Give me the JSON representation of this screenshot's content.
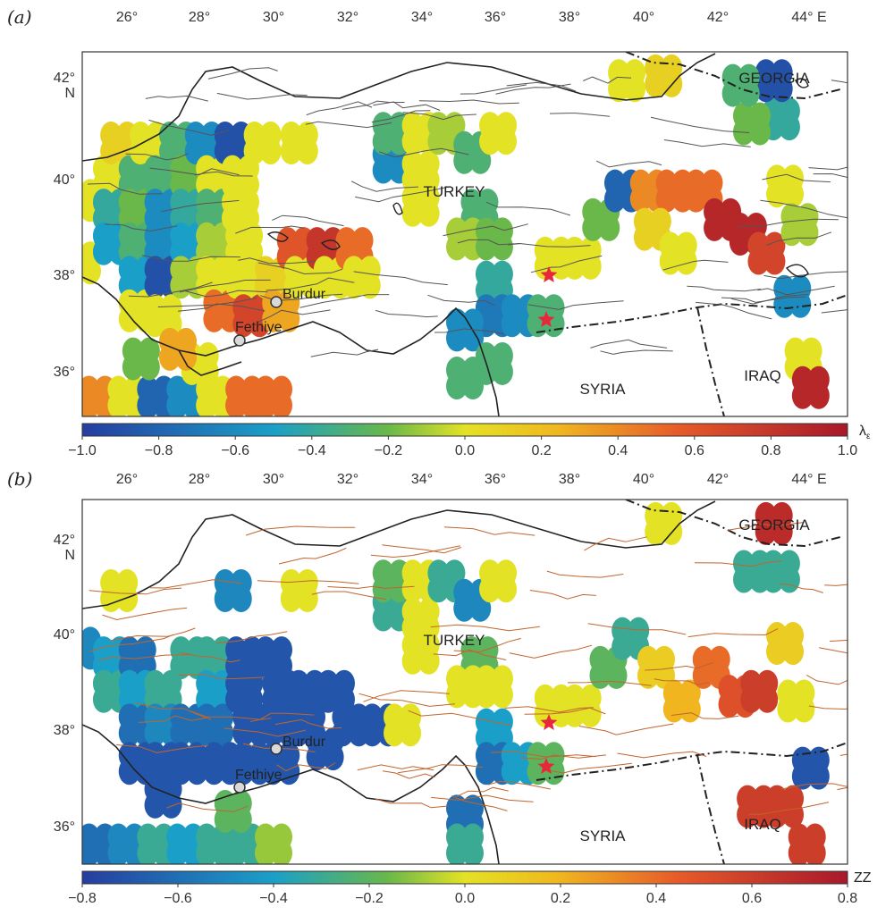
{
  "panels": [
    {
      "label": "(a)",
      "lon_ticks": [
        "26°",
        "28°",
        "30°",
        "32°",
        "34°",
        "36°",
        "38°",
        "40°",
        "42°",
        "44° E"
      ],
      "lat_ticks": [
        "42°",
        "40°",
        "38°",
        "36°"
      ],
      "lat_suffix": "N",
      "colorbar": {
        "title": "λε",
        "ticks": [
          "−1.0",
          "−0.8",
          "−0.6",
          "−0.4",
          "−0.2",
          "0.0",
          "0.2",
          "0.4",
          "0.6",
          "0.8",
          "1.0"
        ],
        "min": -1.0,
        "max": 1.0
      },
      "fault_color": "#555555",
      "cells": [
        {
          "lon": 25.0,
          "lat": 39.7,
          "v": 0.0
        },
        {
          "lon": 25.0,
          "lat": 38.4,
          "v": 0.0
        },
        {
          "lon": 25.8,
          "lat": 40.2,
          "v": 0.0
        },
        {
          "lon": 25.8,
          "lat": 39.5,
          "v": -0.4
        },
        {
          "lon": 25.8,
          "lat": 38.8,
          "v": -0.5
        },
        {
          "lon": 26.0,
          "lat": 40.9,
          "v": 0.1
        },
        {
          "lon": 26.5,
          "lat": 40.2,
          "v": -0.3
        },
        {
          "lon": 26.5,
          "lat": 39.5,
          "v": -0.2
        },
        {
          "lon": 26.5,
          "lat": 38.8,
          "v": -0.3
        },
        {
          "lon": 26.5,
          "lat": 38.1,
          "v": -0.5
        },
        {
          "lon": 26.5,
          "lat": 37.4,
          "v": 0.0
        },
        {
          "lon": 26.8,
          "lat": 40.9,
          "v": 0.0
        },
        {
          "lon": 27.2,
          "lat": 40.2,
          "v": -0.3
        },
        {
          "lon": 27.2,
          "lat": 39.5,
          "v": -0.6
        },
        {
          "lon": 27.2,
          "lat": 38.8,
          "v": -0.6
        },
        {
          "lon": 27.2,
          "lat": 38.1,
          "v": -0.9
        },
        {
          "lon": 27.2,
          "lat": 37.3,
          "v": 0.0
        },
        {
          "lon": 27.6,
          "lat": 40.9,
          "v": -0.3
        },
        {
          "lon": 27.9,
          "lat": 40.2,
          "v": -0.2
        },
        {
          "lon": 27.9,
          "lat": 39.5,
          "v": -0.4
        },
        {
          "lon": 27.9,
          "lat": 38.8,
          "v": -0.5
        },
        {
          "lon": 27.9,
          "lat": 38.1,
          "v": -0.1
        },
        {
          "lon": 28.3,
          "lat": 40.9,
          "v": -0.6
        },
        {
          "lon": 28.6,
          "lat": 40.2,
          "v": 0.0
        },
        {
          "lon": 28.6,
          "lat": 39.5,
          "v": -0.3
        },
        {
          "lon": 28.6,
          "lat": 38.8,
          "v": -0.1
        },
        {
          "lon": 28.6,
          "lat": 38.1,
          "v": 0.0
        },
        {
          "lon": 28.8,
          "lat": 37.4,
          "v": 0.5
        },
        {
          "lon": 29.1,
          "lat": 40.9,
          "v": -0.9
        },
        {
          "lon": 29.3,
          "lat": 40.2,
          "v": 0.0
        },
        {
          "lon": 29.3,
          "lat": 39.5,
          "v": 0.0
        },
        {
          "lon": 29.4,
          "lat": 38.8,
          "v": 0.0
        },
        {
          "lon": 29.4,
          "lat": 38.1,
          "v": 0.0
        },
        {
          "lon": 29.6,
          "lat": 37.3,
          "v": 0.7
        },
        {
          "lon": 29.9,
          "lat": 40.9,
          "v": 0.0
        },
        {
          "lon": 30.2,
          "lat": 38.1,
          "v": 0.1
        },
        {
          "lon": 30.4,
          "lat": 37.4,
          "v": 0.3
        },
        {
          "lon": 30.8,
          "lat": 38.7,
          "v": 0.6
        },
        {
          "lon": 30.9,
          "lat": 40.9,
          "v": 0.0
        },
        {
          "lon": 31.0,
          "lat": 38.1,
          "v": 0.0
        },
        {
          "lon": 31.6,
          "lat": 38.7,
          "v": 0.8
        },
        {
          "lon": 31.8,
          "lat": 38.1,
          "v": 0.0
        },
        {
          "lon": 32.4,
          "lat": 38.7,
          "v": 0.5
        },
        {
          "lon": 32.6,
          "lat": 38.1,
          "v": 0.0
        },
        {
          "lon": 33.4,
          "lat": 40.5,
          "v": -0.6
        },
        {
          "lon": 33.4,
          "lat": 41.1,
          "v": -0.3
        },
        {
          "lon": 34.2,
          "lat": 41.1,
          "v": 0.0
        },
        {
          "lon": 34.2,
          "lat": 40.3,
          "v": 0.0
        },
        {
          "lon": 34.2,
          "lat": 39.6,
          "v": 0.0
        },
        {
          "lon": 34.9,
          "lat": 41.1,
          "v": -0.1
        },
        {
          "lon": 35.6,
          "lat": 40.7,
          "v": -0.3
        },
        {
          "lon": 36.3,
          "lat": 41.1,
          "v": 0.0
        },
        {
          "lon": 35.8,
          "lat": 39.5,
          "v": -0.3
        },
        {
          "lon": 35.4,
          "lat": 38.9,
          "v": -0.1
        },
        {
          "lon": 36.2,
          "lat": 38.9,
          "v": -0.2
        },
        {
          "lon": 36.2,
          "lat": 38.0,
          "v": -0.4
        },
        {
          "lon": 36.2,
          "lat": 37.3,
          "v": -0.7
        },
        {
          "lon": 36.9,
          "lat": 37.3,
          "v": -0.6
        },
        {
          "lon": 35.4,
          "lat": 37.0,
          "v": -0.6
        },
        {
          "lon": 35.4,
          "lat": 36.0,
          "v": -0.3
        },
        {
          "lon": 36.2,
          "lat": 36.3,
          "v": -0.3
        },
        {
          "lon": 37.6,
          "lat": 37.3,
          "v": -0.3
        },
        {
          "lon": 37.8,
          "lat": 38.5,
          "v": 0.0
        },
        {
          "lon": 38.6,
          "lat": 38.5,
          "v": 0.0
        },
        {
          "lon": 39.1,
          "lat": 39.3,
          "v": -0.2
        },
        {
          "lon": 39.7,
          "lat": 39.9,
          "v": -0.8
        },
        {
          "lon": 40.4,
          "lat": 39.9,
          "v": 0.4
        },
        {
          "lon": 41.1,
          "lat": 39.9,
          "v": 0.5
        },
        {
          "lon": 41.9,
          "lat": 39.9,
          "v": 0.5
        },
        {
          "lon": 40.5,
          "lat": 39.1,
          "v": 0.1
        },
        {
          "lon": 41.2,
          "lat": 38.6,
          "v": 0.0
        },
        {
          "lon": 42.4,
          "lat": 39.3,
          "v": 0.9
        },
        {
          "lon": 43.1,
          "lat": 39.0,
          "v": 0.9
        },
        {
          "lon": 43.6,
          "lat": 38.6,
          "v": 0.7
        },
        {
          "lon": 44.1,
          "lat": 40.0,
          "v": 0.0
        },
        {
          "lon": 44.5,
          "lat": 39.2,
          "v": -0.1
        },
        {
          "lon": 44.3,
          "lat": 37.7,
          "v": -0.6
        },
        {
          "lon": 44.6,
          "lat": 36.4,
          "v": 0.0
        },
        {
          "lon": 44.8,
          "lat": 35.8,
          "v": 0.9
        },
        {
          "lon": 44.0,
          "lat": 41.4,
          "v": -0.4
        },
        {
          "lon": 43.2,
          "lat": 41.3,
          "v": -0.2
        },
        {
          "lon": 43.8,
          "lat": 42.2,
          "v": -0.9
        },
        {
          "lon": 42.9,
          "lat": 42.1,
          "v": -0.3
        },
        {
          "lon": 40.8,
          "lat": 42.3,
          "v": 0.1
        },
        {
          "lon": 39.8,
          "lat": 42.2,
          "v": 0.0
        },
        {
          "lon": 25.4,
          "lat": 35.6,
          "v": 0.4
        },
        {
          "lon": 26.2,
          "lat": 35.6,
          "v": 0.0
        },
        {
          "lon": 27.0,
          "lat": 35.6,
          "v": -0.8
        },
        {
          "lon": 27.8,
          "lat": 35.6,
          "v": -0.6
        },
        {
          "lon": 28.6,
          "lat": 35.6,
          "v": 0.0
        },
        {
          "lon": 29.4,
          "lat": 35.6,
          "v": 0.5
        },
        {
          "lon": 30.2,
          "lat": 35.6,
          "v": 0.5
        },
        {
          "lon": 26.6,
          "lat": 36.4,
          "v": -0.2
        },
        {
          "lon": 28.2,
          "lat": 36.3,
          "v": 0.0
        },
        {
          "lon": 27.6,
          "lat": 36.6,
          "v": 0.3
        }
      ],
      "labels": {
        "turkey": "TURKEY",
        "georgia": "GEORGIA",
        "syria": "SYRIA",
        "iraq": "IRAQ",
        "burdur": "Burdur",
        "fethiye": "Fethiye"
      }
    },
    {
      "label": "(b)",
      "lon_ticks": [
        "26°",
        "28°",
        "30°",
        "32°",
        "34°",
        "36°",
        "38°",
        "40°",
        "42°",
        "44° E"
      ],
      "lat_ticks": [
        "42°",
        "40°",
        "38°",
        "36°"
      ],
      "lat_suffix": "N",
      "colorbar": {
        "title": "ZZ",
        "ticks": [
          "−0.8",
          "−0.6",
          "−0.4",
          "−0.2",
          "0.0",
          "0.2",
          "0.4",
          "0.6",
          "0.8"
        ],
        "min": -0.8,
        "max": 0.8
      },
      "fault_color": "#c0652d",
      "cells": [
        {
          "lon": 25.0,
          "lat": 39.7,
          "v": -0.5
        },
        {
          "lon": 25.8,
          "lat": 39.5,
          "v": -0.4
        },
        {
          "lon": 25.8,
          "lat": 38.8,
          "v": -0.3
        },
        {
          "lon": 26.0,
          "lat": 40.9,
          "v": 0.0
        },
        {
          "lon": 26.5,
          "lat": 39.5,
          "v": -0.6
        },
        {
          "lon": 26.5,
          "lat": 38.8,
          "v": -0.4
        },
        {
          "lon": 26.5,
          "lat": 38.1,
          "v": -0.6
        },
        {
          "lon": 26.5,
          "lat": 37.3,
          "v": -0.7
        },
        {
          "lon": 27.2,
          "lat": 38.8,
          "v": -0.3
        },
        {
          "lon": 27.2,
          "lat": 38.1,
          "v": -0.5
        },
        {
          "lon": 27.2,
          "lat": 37.3,
          "v": -0.7
        },
        {
          "lon": 27.2,
          "lat": 36.6,
          "v": -0.7
        },
        {
          "lon": 27.9,
          "lat": 39.5,
          "v": -0.3
        },
        {
          "lon": 27.9,
          "lat": 38.1,
          "v": -0.6
        },
        {
          "lon": 27.9,
          "lat": 37.3,
          "v": -0.7
        },
        {
          "lon": 28.6,
          "lat": 39.5,
          "v": -0.3
        },
        {
          "lon": 28.6,
          "lat": 38.8,
          "v": -0.4
        },
        {
          "lon": 28.6,
          "lat": 38.1,
          "v": -0.6
        },
        {
          "lon": 28.8,
          "lat": 37.3,
          "v": -0.7
        },
        {
          "lon": 29.1,
          "lat": 40.9,
          "v": -0.5
        },
        {
          "lon": 29.4,
          "lat": 39.5,
          "v": -0.7
        },
        {
          "lon": 29.4,
          "lat": 38.8,
          "v": -0.7
        },
        {
          "lon": 29.6,
          "lat": 38.1,
          "v": -0.7
        },
        {
          "lon": 29.6,
          "lat": 37.3,
          "v": -0.7
        },
        {
          "lon": 30.2,
          "lat": 39.5,
          "v": -0.7
        },
        {
          "lon": 30.4,
          "lat": 38.8,
          "v": -0.7
        },
        {
          "lon": 30.4,
          "lat": 38.1,
          "v": -0.7
        },
        {
          "lon": 30.4,
          "lat": 37.3,
          "v": -0.7
        },
        {
          "lon": 31.1,
          "lat": 38.8,
          "v": -0.7
        },
        {
          "lon": 31.1,
          "lat": 38.1,
          "v": -0.7
        },
        {
          "lon": 31.6,
          "lat": 37.6,
          "v": -0.7
        },
        {
          "lon": 31.9,
          "lat": 38.8,
          "v": -0.7
        },
        {
          "lon": 32.3,
          "lat": 38.1,
          "v": -0.7
        },
        {
          "lon": 33.1,
          "lat": 38.1,
          "v": -0.7
        },
        {
          "lon": 33.7,
          "lat": 38.1,
          "v": 0.0
        },
        {
          "lon": 30.9,
          "lat": 40.9,
          "v": 0.0
        },
        {
          "lon": 33.4,
          "lat": 40.5,
          "v": -0.3
        },
        {
          "lon": 33.4,
          "lat": 41.1,
          "v": -0.2
        },
        {
          "lon": 34.2,
          "lat": 41.1,
          "v": 0.0
        },
        {
          "lon": 34.2,
          "lat": 40.3,
          "v": 0.0
        },
        {
          "lon": 34.2,
          "lat": 39.6,
          "v": 0.0
        },
        {
          "lon": 34.9,
          "lat": 41.1,
          "v": -0.3
        },
        {
          "lon": 35.6,
          "lat": 40.7,
          "v": -0.5
        },
        {
          "lon": 36.3,
          "lat": 41.1,
          "v": 0.0
        },
        {
          "lon": 35.8,
          "lat": 39.5,
          "v": -0.2
        },
        {
          "lon": 35.4,
          "lat": 38.9,
          "v": 0.0
        },
        {
          "lon": 36.2,
          "lat": 38.9,
          "v": 0.0
        },
        {
          "lon": 36.2,
          "lat": 38.0,
          "v": -0.4
        },
        {
          "lon": 36.2,
          "lat": 37.3,
          "v": -0.6
        },
        {
          "lon": 36.9,
          "lat": 37.3,
          "v": -0.4
        },
        {
          "lon": 35.4,
          "lat": 36.2,
          "v": -0.6
        },
        {
          "lon": 35.4,
          "lat": 35.6,
          "v": -0.3
        },
        {
          "lon": 37.6,
          "lat": 37.3,
          "v": -0.2
        },
        {
          "lon": 37.8,
          "lat": 38.5,
          "v": 0.0
        },
        {
          "lon": 38.6,
          "lat": 38.5,
          "v": 0.0
        },
        {
          "lon": 39.3,
          "lat": 39.3,
          "v": -0.2
        },
        {
          "lon": 39.9,
          "lat": 39.9,
          "v": -0.3
        },
        {
          "lon": 40.6,
          "lat": 39.3,
          "v": 0.1
        },
        {
          "lon": 41.3,
          "lat": 38.6,
          "v": 0.2
        },
        {
          "lon": 42.1,
          "lat": 39.3,
          "v": 0.4
        },
        {
          "lon": 42.8,
          "lat": 38.7,
          "v": 0.5
        },
        {
          "lon": 43.4,
          "lat": 38.8,
          "v": 0.6
        },
        {
          "lon": 44.1,
          "lat": 39.8,
          "v": 0.1
        },
        {
          "lon": 44.4,
          "lat": 38.6,
          "v": 0.0
        },
        {
          "lon": 44.8,
          "lat": 37.2,
          "v": -0.7
        },
        {
          "lon": 43.3,
          "lat": 36.4,
          "v": 0.6
        },
        {
          "lon": 44.1,
          "lat": 36.4,
          "v": 0.6
        },
        {
          "lon": 44.7,
          "lat": 35.6,
          "v": 0.6
        },
        {
          "lon": 43.2,
          "lat": 41.3,
          "v": -0.3
        },
        {
          "lon": 44.0,
          "lat": 41.3,
          "v": -0.3
        },
        {
          "lon": 43.8,
          "lat": 42.3,
          "v": 0.7
        },
        {
          "lon": 40.8,
          "lat": 42.3,
          "v": 0.0
        },
        {
          "lon": 25.4,
          "lat": 35.6,
          "v": -0.6
        },
        {
          "lon": 26.2,
          "lat": 35.6,
          "v": -0.5
        },
        {
          "lon": 27.0,
          "lat": 35.6,
          "v": -0.3
        },
        {
          "lon": 27.8,
          "lat": 35.6,
          "v": -0.4
        },
        {
          "lon": 28.6,
          "lat": 35.6,
          "v": -0.3
        },
        {
          "lon": 29.4,
          "lat": 35.6,
          "v": -0.3
        },
        {
          "lon": 30.2,
          "lat": 35.6,
          "v": -0.1
        },
        {
          "lon": 29.1,
          "lat": 36.3,
          "v": -0.2
        }
      ],
      "labels": {
        "turkey": "TURKEY",
        "georgia": "GEORGIA",
        "syria": "SYRIA",
        "iraq": "IRAQ",
        "burdur": "Burdur",
        "fethiye": "Fethiye"
      }
    }
  ]
}
